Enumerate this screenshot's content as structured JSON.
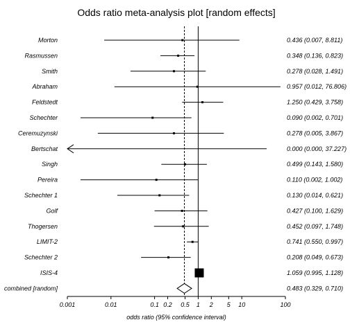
{
  "chart_data": {
    "type": "forest",
    "title": "Odds ratio meta-analysis plot [random effects]",
    "xlabel": "odds ratio (95% confidence interval)",
    "xscale": "log",
    "xlim": [
      0.001,
      100
    ],
    "xticks": [
      "0.001",
      "0.01",
      "0.1",
      "0.2",
      "0.5",
      "1",
      "2",
      "5",
      "10",
      "100"
    ],
    "tick_values": [
      0.001,
      0.01,
      0.1,
      0.2,
      0.5,
      1,
      2,
      5,
      10,
      100
    ],
    "reference_line": 1,
    "pooled_line": 0.483,
    "studies": [
      {
        "name": "Morton",
        "or": 0.436,
        "lo": 0.007,
        "hi": 8.811,
        "label": "0.436 (0.007, 8.811)"
      },
      {
        "name": "Rasmussen",
        "or": 0.348,
        "lo": 0.136,
        "hi": 0.823,
        "label": "0.348 (0.136, 0.823)"
      },
      {
        "name": "Smith",
        "or": 0.278,
        "lo": 0.028,
        "hi": 1.491,
        "label": "0.278 (0.028, 1.491)"
      },
      {
        "name": "Abraham",
        "or": 0.957,
        "lo": 0.012,
        "hi": 76.806,
        "label": "0.957 (0.012, 76.806)"
      },
      {
        "name": "Feldstedt",
        "or": 1.25,
        "lo": 0.429,
        "hi": 3.758,
        "label": "1.250 (0.429, 3.758)"
      },
      {
        "name": "Schechter",
        "or": 0.09,
        "lo": 0.002,
        "hi": 0.701,
        "label": "0.090 (0.002, 0.701)"
      },
      {
        "name": "Ceremuzynski",
        "or": 0.278,
        "lo": 0.005,
        "hi": 3.867,
        "label": "0.278 (0.005, 3.867)"
      },
      {
        "name": "Bertschat",
        "or": 0.0,
        "lo": 0.0,
        "hi": 37.227,
        "label": "0.000 (0.000, 37.227)",
        "arrow_left": true
      },
      {
        "name": "Singh",
        "or": 0.499,
        "lo": 0.143,
        "hi": 1.58,
        "label": "0.499 (0.143, 1.580)"
      },
      {
        "name": "Pereira",
        "or": 0.11,
        "lo": 0.002,
        "hi": 1.002,
        "label": "0.110 (0.002, 1.002)"
      },
      {
        "name": "Schechter 1",
        "or": 0.13,
        "lo": 0.014,
        "hi": 0.621,
        "label": "0.130 (0.014, 0.621)"
      },
      {
        "name": "Golf",
        "or": 0.427,
        "lo": 0.1,
        "hi": 1.629,
        "label": "0.427 (0.100, 1.629)"
      },
      {
        "name": "Thogersen",
        "or": 0.452,
        "lo": 0.097,
        "hi": 1.748,
        "label": "0.452 (0.097, 1.748)"
      },
      {
        "name": "LIMIT-2",
        "or": 0.741,
        "lo": 0.55,
        "hi": 0.997,
        "label": "0.741 (0.550, 0.997)"
      },
      {
        "name": "Schechter 2",
        "or": 0.208,
        "lo": 0.049,
        "hi": 0.673,
        "label": "0.208 (0.049, 0.673)"
      },
      {
        "name": "ISIS-4",
        "or": 1.059,
        "lo": 0.995,
        "hi": 1.128,
        "label": "1.059 (0.995, 1.128)",
        "big_marker": true
      }
    ],
    "combined": {
      "name": "combined [random]",
      "or": 0.483,
      "lo": 0.329,
      "hi": 0.71,
      "label": "0.483 (0.329, 0.710)"
    }
  }
}
